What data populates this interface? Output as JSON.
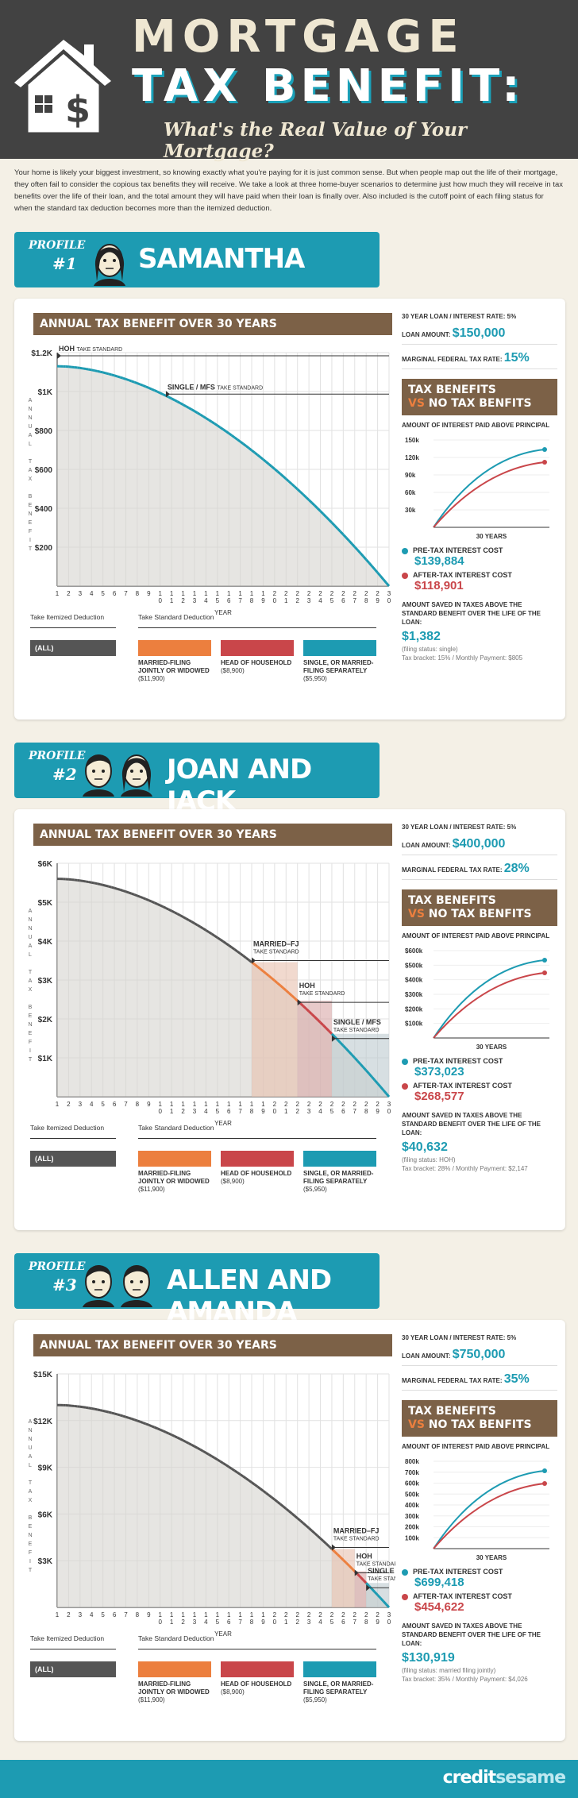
{
  "header": {
    "title_line1": "MORTGAGE",
    "title_line2": "TAX BENEFIT:",
    "subtitle": "What's the Real Value of Your Mortgage?"
  },
  "intro": "Your home is likely your biggest investment, so knowing exactly what you're paying for it is just common sense. But when people map out the life of their mortgage, they often fail to consider the copious tax benefits they will receive. We take a look at three home-buyer scenarios to determine just how much they will receive in tax benefits over the life of their loan, and the total amount they will have paid when their loan is finally over. Also included is the cutoff point of each filing status for when the standard tax deduction becomes more than the itemized deduction.",
  "common": {
    "profile_label": "PROFILE",
    "chart_title": "ANNUAL TAX BENEFIT OVER 30 YEARS",
    "year_label": "YEAR",
    "y_axis_letters": [
      "A",
      "N",
      "N",
      "U",
      "A",
      "L",
      "",
      "T",
      "A",
      "X",
      "",
      "B",
      "E",
      "N",
      "E",
      "F",
      "I",
      "T"
    ],
    "x_ticks": [
      "1",
      "2",
      "3",
      "4",
      "5",
      "6",
      "7",
      "8",
      "9",
      "1\n0",
      "1\n1",
      "1\n2",
      "1\n3",
      "1\n4",
      "1\n5",
      "1\n6",
      "1\n7",
      "1\n8",
      "1\n9",
      "2\n0",
      "2\n1",
      "2\n2",
      "2\n3",
      "2\n4",
      "2\n5",
      "2\n6",
      "2\n7",
      "2\n8",
      "2\n9",
      "3\n0"
    ],
    "take_itemized": "Take Itemized Deduction",
    "take_standard": "Take Standard Deduction",
    "all_label": "(ALL)",
    "legend": [
      {
        "label": "MARRIED-FILING JOINTLY OR WIDOWED",
        "amount": "($11,900)",
        "color": "#ec7f3e"
      },
      {
        "label": "HEAD OF HOUSEHOLD",
        "amount": "($8,900)",
        "color": "#c9464a"
      },
      {
        "label": "SINGLE, OR MARRIED-FILING SEPARATELY",
        "amount": "($5,950)",
        "color": "#1d9bb2"
      }
    ],
    "loan_term_label": "30 YEAR LOAN",
    "interest_rate_label": "INTEREST RATE: 5%",
    "loan_amount_label": "LOAN AMOUNT:",
    "tax_rate_label": "MARGINAL FEDERAL TAX RATE:",
    "tax_box_line1": "TAX BENEFITS",
    "tax_box_vs": "VS",
    "tax_box_line2": "NO TAX BENFITS",
    "mini_title": "AMOUNT OF INTEREST PAID ABOVE PRINCIPAL",
    "mini_x_label": "30 YEARS",
    "pre_tax_label": "PRE-TAX INTEREST COST",
    "after_tax_label": "AFTER-TAX INTEREST COST",
    "saved_label": "AMOUNT SAVED IN TAXES ABOVE THE STANDARD BENEFIT OVER THE LIFE OF THE LOAN:",
    "colors": {
      "teal": "#1d9bb2",
      "orange": "#ec7f3e",
      "red": "#c9464a",
      "brown": "#7c6147",
      "dark": "#424242"
    }
  },
  "profiles": [
    {
      "number": "#1",
      "name": "SAMANTHA",
      "loan_amount": "$150,000",
      "tax_rate": "15%",
      "pre_tax_cost": "$139,884",
      "after_tax_cost": "$118,901",
      "saved": "$1,382",
      "filing_status": "(filing status: single)",
      "bracket_payment": "Tax bracket: 15% / Monthly Payment: $805",
      "markers": [
        {
          "label": "HOH",
          "sub": "TAKE STANDARD",
          "year": 1
        },
        {
          "label": "SINGLE / MFS",
          "sub": "TAKE STANDARD",
          "year": 10.5
        }
      ],
      "mini_y": [
        "150k",
        "120k",
        "90k",
        "60k",
        "30k"
      ]
    },
    {
      "number": "#2",
      "name": "JOAN AND JACK",
      "loan_amount": "$400,000",
      "tax_rate": "28%",
      "pre_tax_cost": "$373,023",
      "after_tax_cost": "$268,577",
      "saved": "$40,632",
      "filing_status": "(filing status: HOH)",
      "bracket_payment": "Tax bracket: 28% / Monthly Payment: $2,147",
      "markers": [
        {
          "label": "MARRIED–FJ",
          "sub": "TAKE STANDARD",
          "year": 18
        },
        {
          "label": "HOH",
          "sub": "TAKE STANDARD",
          "year": 22
        },
        {
          "label": "SINGLE / MFS",
          "sub": "TAKE STANDARD",
          "year": 25
        }
      ],
      "mini_y": [
        "$600k",
        "$500k",
        "$400k",
        "$300k",
        "$200k",
        "$100k"
      ]
    },
    {
      "number": "#3",
      "name": "ALLEN AND AMANDA",
      "loan_amount": "$750,000",
      "tax_rate": "35%",
      "pre_tax_cost": "$699,418",
      "after_tax_cost": "$454,622",
      "saved": "$130,919",
      "filing_status": "(filing status: married filing jointly)",
      "bracket_payment": "Tax bracket: 35% / Monthly Payment: $4,026",
      "markers": [
        {
          "label": "MARRIED–FJ",
          "sub": "TAKE STANDARD",
          "year": 25
        },
        {
          "label": "HOH",
          "sub": "TAKE STANDARD",
          "year": 27
        },
        {
          "label": "SINGLE / MFS",
          "sub": "TAKE STANDARD",
          "year": 28
        }
      ],
      "mini_y": [
        "800k",
        "700k",
        "600k",
        "500k",
        "400k",
        "300k",
        "200k",
        "100k"
      ]
    }
  ],
  "chart_data": [
    {
      "type": "area",
      "title": "ANNUAL TAX BENEFIT OVER 30 YEARS",
      "xlabel": "YEAR",
      "ylabel": "ANNUAL TAX BENEFIT",
      "yticks": [
        "$1.2K",
        "$1K",
        "$800",
        "$600",
        "$400",
        "$200"
      ],
      "ylim": [
        0,
        1200
      ],
      "x": [
        1,
        30
      ],
      "series": [
        {
          "values_start": 1130,
          "values_end": 0
        }
      ]
    },
    {
      "type": "area",
      "title": "ANNUAL TAX BENEFIT OVER 30 YEARS",
      "xlabel": "YEAR",
      "ylabel": "ANNUAL TAX BENEFIT",
      "yticks": [
        "$6K",
        "$5K",
        "$4K",
        "$3K",
        "$2K",
        "$1K"
      ],
      "ylim": [
        0,
        6000
      ],
      "x": [
        1,
        30
      ],
      "series": [
        {
          "values_start": 5600,
          "values_end": 0
        }
      ]
    },
    {
      "type": "area",
      "title": "ANNUAL TAX BENEFIT OVER 30 YEARS",
      "xlabel": "YEAR",
      "ylabel": "ANNUAL TAX BENEFIT",
      "yticks": [
        "$15K",
        "$12K",
        "$9K",
        "$6K",
        "$3K"
      ],
      "ylim": [
        0,
        15000
      ],
      "x": [
        1,
        30
      ],
      "series": [
        {
          "values_start": 13000,
          "values_end": 0
        }
      ]
    }
  ],
  "footer": {
    "brand1": "credit",
    "brand2": "sesame"
  }
}
